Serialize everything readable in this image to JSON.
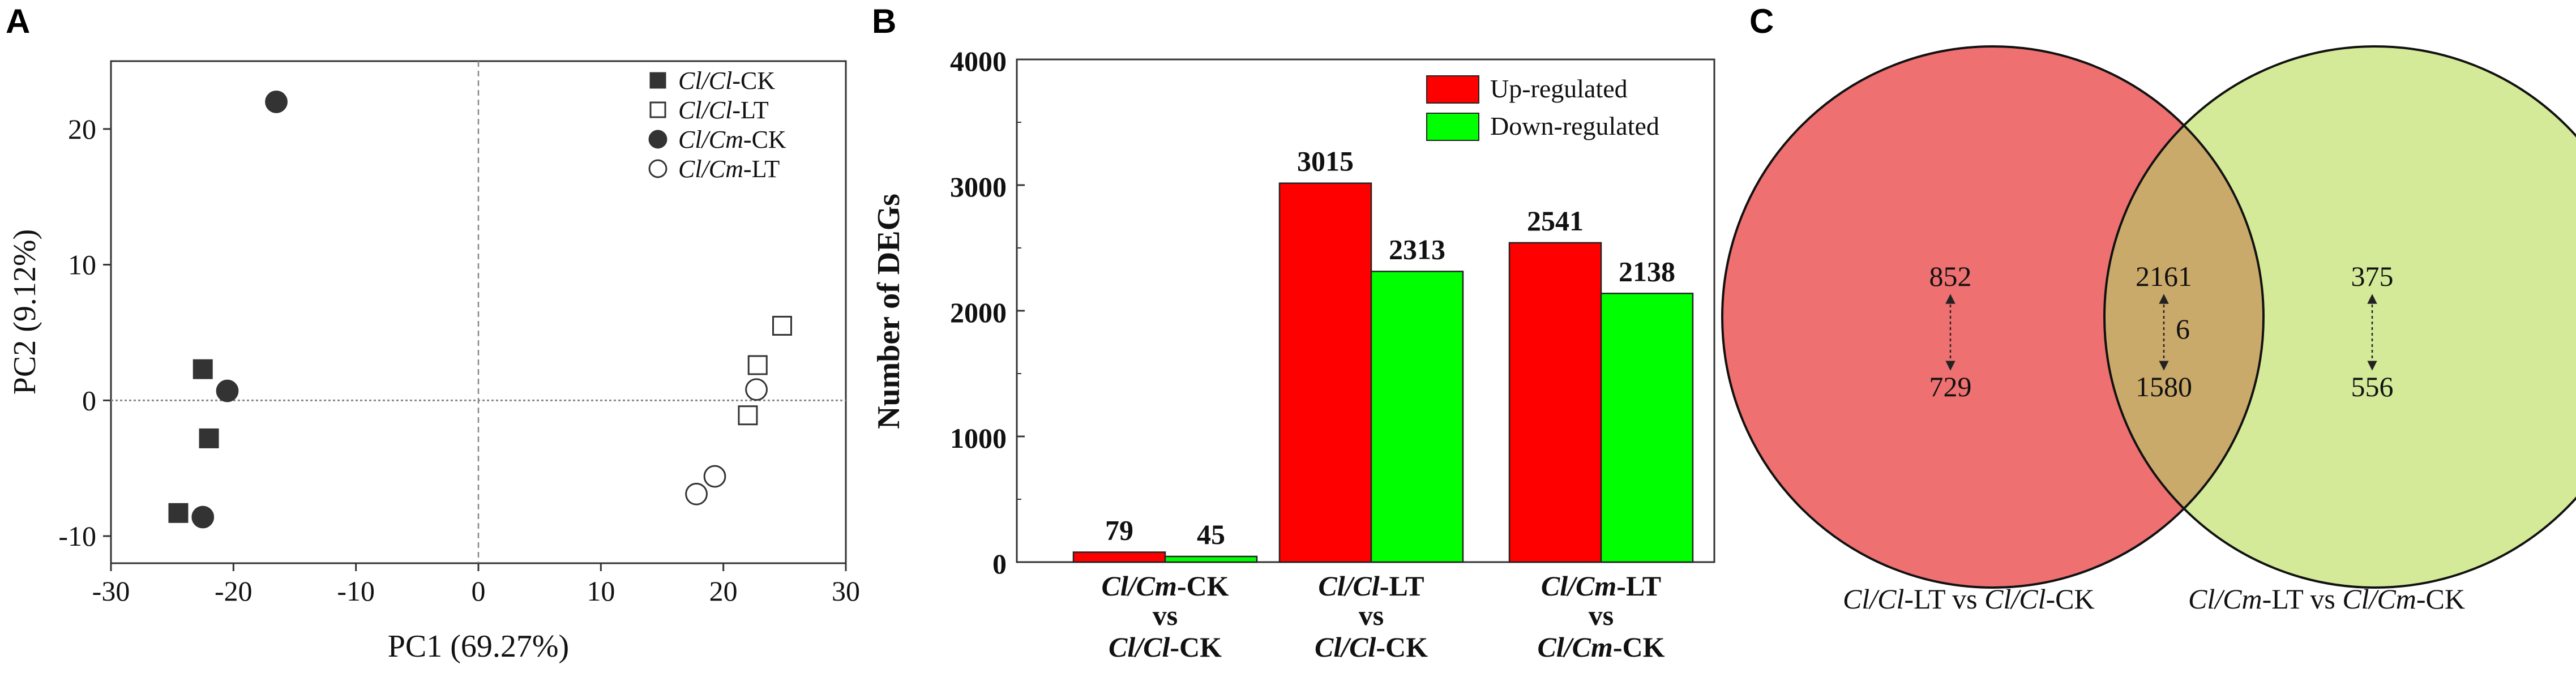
{
  "chart_data": [
    {
      "type": "scatter",
      "panel_label": "A",
      "xlabel": "PC1 (69.27%)",
      "ylabel": "PC2 (9.12%)",
      "xlim": [
        -30,
        30
      ],
      "ylim": [
        -12,
        25
      ],
      "xticks": [
        "-30",
        "-20",
        "-10",
        "0",
        "10",
        "20",
        "30"
      ],
      "yticks": [
        "-10",
        "0",
        "10",
        "20"
      ],
      "reference_lines": "dashed at x=0 and y=0",
      "legend_position": "top-right",
      "series": [
        {
          "label_italic": "Cl/Cl",
          "label_suffix": "-CK",
          "marker": "filled-square",
          "points": [
            [
              -22.5,
              2.3
            ],
            [
              -22.0,
              -2.8
            ],
            [
              -24.5,
              -8.3
            ]
          ]
        },
        {
          "label_italic": "Cl/Cl",
          "label_suffix": "-LT",
          "marker": "open-square",
          "points": [
            [
              24.8,
              5.5
            ],
            [
              22.8,
              2.6
            ],
            [
              22.0,
              -1.1
            ]
          ]
        },
        {
          "label_italic": "Cl/Cm",
          "label_suffix": "-CK",
          "marker": "filled-circle",
          "points": [
            [
              -16.5,
              22.0
            ],
            [
              -20.5,
              0.7
            ],
            [
              -22.5,
              -8.6
            ]
          ]
        },
        {
          "label_italic": "Cl/Cm",
          "label_suffix": "-LT",
          "marker": "open-circle",
          "points": [
            [
              22.7,
              0.8
            ],
            [
              19.3,
              -5.6
            ],
            [
              17.8,
              -6.9
            ]
          ]
        }
      ]
    },
    {
      "type": "bar",
      "panel_label": "B",
      "ylabel": "Number of DEGs",
      "ylim": [
        0,
        4000
      ],
      "yticks": [
        "0",
        "1000",
        "2000",
        "3000",
        "4000"
      ],
      "legend_position": "top-right",
      "categories": [
        {
          "line1_italic": "Cl/Cm",
          "line1_suffix": "-CK",
          "line2": "vs",
          "line3_italic": "Cl/Cl",
          "line3_suffix": "-CK"
        },
        {
          "line1_italic": "Cl/Cl",
          "line1_suffix": "-LT",
          "line2": "vs",
          "line3_italic": "Cl/Cl",
          "line3_suffix": "-CK"
        },
        {
          "line1_italic": "Cl/Cm",
          "line1_suffix": "-LT",
          "line2": "vs",
          "line3_italic": "Cl/Cm",
          "line3_suffix": "-CK"
        }
      ],
      "series": [
        {
          "name": "Up-regulated",
          "color": "#ff0000",
          "values": [
            79,
            3015,
            2541
          ],
          "labels": [
            "79",
            "3015",
            "2541"
          ]
        },
        {
          "name": "Down-regulated",
          "color": "#00ff00",
          "values": [
            45,
            2313,
            2138
          ],
          "labels": [
            "45",
            "2313",
            "2138"
          ]
        }
      ]
    },
    {
      "type": "venn",
      "panel_label": "C",
      "sets": [
        {
          "label_italic": "Cl/Cl",
          "label_suffix": "-LT",
          "label_vs": "vs",
          "label_italic2": "Cl/Cl",
          "label_suffix2": "-CK",
          "color": "#ee7070",
          "up": "852",
          "down": "729"
        },
        {
          "label_italic": "Cl/Cm",
          "label_suffix": "-LT",
          "label_vs": "vs",
          "label_italic2": "Cl/Cm",
          "label_suffix2": "-CK",
          "color": "#d4ea98",
          "up": "375",
          "down": "556"
        }
      ],
      "intersection": {
        "color": "#c9aa6a",
        "up": "2161",
        "down": "1580",
        "both": "6"
      }
    }
  ]
}
